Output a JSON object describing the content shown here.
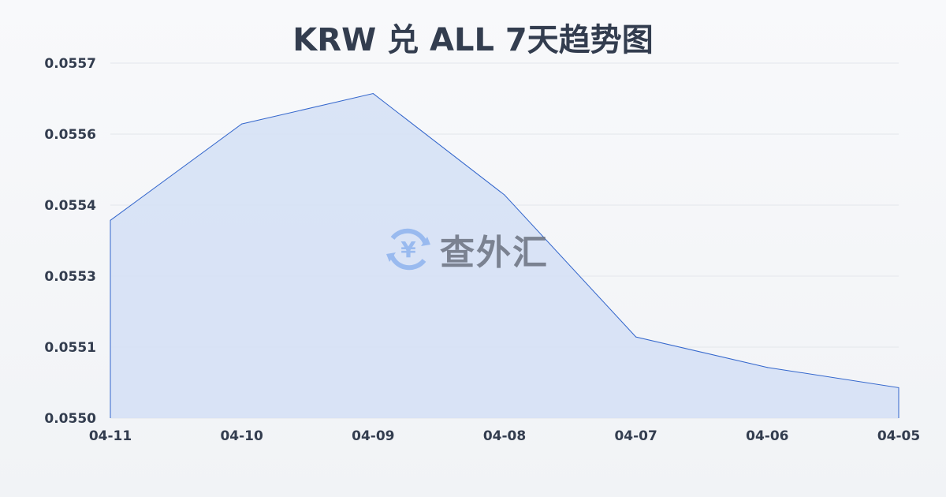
{
  "chart_data": {
    "type": "area",
    "title": "KRW 兑 ALL 7天趋势图",
    "xlabel": "",
    "ylabel": "",
    "categories": [
      "04-11",
      "04-10",
      "04-09",
      "04-08",
      "04-07",
      "04-06",
      "04-05"
    ],
    "series": [
      {
        "values": [
          0.05539,
          0.05558,
          0.05564,
          0.05544,
          0.05516,
          0.0551,
          0.05506
        ]
      }
    ],
    "ylim": [
      0.055,
      0.0557
    ],
    "yticks": [
      0.055,
      0.05514,
      0.05528,
      0.05542,
      0.05556,
      0.0557
    ],
    "ytick_labels": [
      "0.0550",
      "0.0551",
      "0.0553",
      "0.0554",
      "0.0556",
      "0.0557"
    ],
    "grid": true,
    "line_color": "#3366cc",
    "fill_color": "#d6e1f5"
  },
  "watermark": {
    "text": "查外汇",
    "icon": "yen-exchange-icon"
  }
}
